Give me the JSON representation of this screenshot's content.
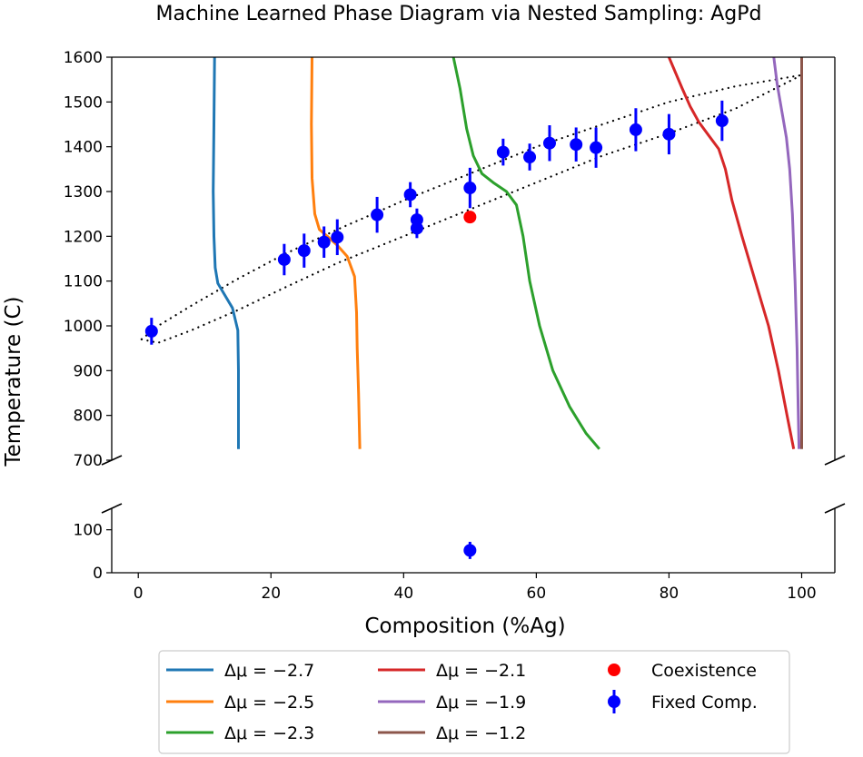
{
  "chart_data": {
    "type": "line",
    "title": "Machine Learned Phase Diagram via Nested Sampling: AgPd",
    "xlabel": "Composition (%Ag)",
    "ylabel": "Temperature (C)",
    "xlim": [
      -4,
      105
    ],
    "ylim_upper": [
      700,
      1600
    ],
    "ylim_lower": [
      0,
      150
    ],
    "xticks": [
      "0",
      "20",
      "40",
      "60",
      "80",
      "100"
    ],
    "yticks_upper": [
      "700",
      "800",
      "900",
      "1000",
      "1100",
      "1200",
      "1300",
      "1400",
      "1500",
      "1600"
    ],
    "yticks_lower": [
      "0",
      "100"
    ],
    "series": [
      {
        "name": "Δμ = −2.7",
        "label_prefix": "Δμ = ",
        "label_value": "−2.7",
        "color": "#1f77b4",
        "points": [
          [
            11.5,
            1600
          ],
          [
            11.4,
            1450
          ],
          [
            11.3,
            1300
          ],
          [
            11.4,
            1200
          ],
          [
            11.6,
            1130
          ],
          [
            12,
            1095
          ],
          [
            13,
            1070
          ],
          [
            14.2,
            1040
          ],
          [
            15,
            990
          ],
          [
            15.1,
            900
          ],
          [
            15.1,
            800
          ],
          [
            15.1,
            725
          ]
        ]
      },
      {
        "name": "Δμ = −2.5",
        "label_prefix": "Δμ = ",
        "label_value": "−2.5",
        "color": "#ff7f0e",
        "points": [
          [
            26.2,
            1600
          ],
          [
            26.1,
            1450
          ],
          [
            26.2,
            1330
          ],
          [
            26.6,
            1250
          ],
          [
            27.3,
            1215
          ],
          [
            28.5,
            1200
          ],
          [
            30,
            1180
          ],
          [
            31.5,
            1155
          ],
          [
            32.6,
            1110
          ],
          [
            32.9,
            1030
          ],
          [
            33,
            950
          ],
          [
            33.2,
            850
          ],
          [
            33.4,
            725
          ]
        ]
      },
      {
        "name": "Δμ = −2.3",
        "label_prefix": "Δμ = ",
        "label_value": "−2.3",
        "color": "#2 ca02c",
        "points": [
          [
            47.5,
            1600
          ],
          [
            48.5,
            1530
          ],
          [
            49.5,
            1440
          ],
          [
            50.5,
            1380
          ],
          [
            51.8,
            1340
          ],
          [
            53.5,
            1320
          ],
          [
            55.5,
            1300
          ],
          [
            57,
            1270
          ],
          [
            58,
            1200
          ],
          [
            59,
            1100
          ],
          [
            60.5,
            1000
          ],
          [
            62.5,
            900
          ],
          [
            65,
            820
          ],
          [
            67.5,
            760
          ],
          [
            69.5,
            725
          ]
        ]
      },
      {
        "name": "Δμ = −2.1",
        "label_prefix": "Δμ = ",
        "label_value": "−2.1",
        "color": "#d62728",
        "points": [
          [
            80,
            1600
          ],
          [
            82,
            1530
          ],
          [
            83.2,
            1490
          ],
          [
            84.5,
            1455
          ],
          [
            86,
            1425
          ],
          [
            87.5,
            1395
          ],
          [
            88.5,
            1350
          ],
          [
            89.5,
            1280
          ],
          [
            91,
            1200
          ],
          [
            93,
            1100
          ],
          [
            95,
            1000
          ],
          [
            96.5,
            900
          ],
          [
            97.8,
            800
          ],
          [
            98.8,
            725
          ]
        ]
      },
      {
        "name": "Δμ = −1.9",
        "label_prefix": "Δμ = ",
        "label_value": "−1.9",
        "color": "#9467bd",
        "points": [
          [
            95.8,
            1600
          ],
          [
            96.3,
            1540
          ],
          [
            97,
            1480
          ],
          [
            97.7,
            1420
          ],
          [
            98.2,
            1350
          ],
          [
            98.6,
            1250
          ],
          [
            99,
            1100
          ],
          [
            99.3,
            950
          ],
          [
            99.5,
            800
          ],
          [
            99.6,
            725
          ]
        ]
      },
      {
        "name": "Δμ = −1.2",
        "label_prefix": "Δμ = ",
        "label_value": "−1.2",
        "color": "#8c564b",
        "points": [
          [
            100,
            1600
          ],
          [
            100,
            1400
          ],
          [
            100,
            1200
          ],
          [
            100,
            1000
          ],
          [
            100,
            800
          ],
          [
            100,
            725
          ]
        ]
      }
    ],
    "phase_boundary": {
      "style": "dotted",
      "color": "#000000",
      "liquidus": [
        [
          0.5,
          970
        ],
        [
          3,
          1000
        ],
        [
          8,
          1045
        ],
        [
          15,
          1105
        ],
        [
          22,
          1160
        ],
        [
          30,
          1215
        ],
        [
          40,
          1280
        ],
        [
          50,
          1340
        ],
        [
          60,
          1400
        ],
        [
          70,
          1450
        ],
        [
          80,
          1500
        ],
        [
          90,
          1535
        ],
        [
          100,
          1560
        ]
      ],
      "solidus": [
        [
          0.5,
          970
        ],
        [
          3,
          962
        ],
        [
          8,
          990
        ],
        [
          15,
          1035
        ],
        [
          22,
          1085
        ],
        [
          30,
          1140
        ],
        [
          40,
          1200
        ],
        [
          50,
          1260
        ],
        [
          60,
          1320
        ],
        [
          70,
          1380
        ],
        [
          80,
          1430
        ],
        [
          90,
          1485
        ],
        [
          100,
          1560
        ]
      ]
    },
    "coexistence": {
      "label": "Coexistence",
      "color": "#ff0000",
      "points": [
        [
          50,
          1243
        ]
      ]
    },
    "fixed_comp": {
      "label": "Fixed Comp.",
      "color": "#0000ff",
      "points": [
        {
          "x": 2,
          "y": 988,
          "err": 30
        },
        {
          "x": 22,
          "y": 1148,
          "err": 35
        },
        {
          "x": 25,
          "y": 1168,
          "err": 38
        },
        {
          "x": 28,
          "y": 1187,
          "err": 35
        },
        {
          "x": 30,
          "y": 1198,
          "err": 40
        },
        {
          "x": 36,
          "y": 1248,
          "err": 40
        },
        {
          "x": 41,
          "y": 1293,
          "err": 28
        },
        {
          "x": 42,
          "y": 1237,
          "err": 25
        },
        {
          "x": 42,
          "y": 1218,
          "err": 22
        },
        {
          "x": 50,
          "y": 1308,
          "err": 45
        },
        {
          "x": 55,
          "y": 1388,
          "err": 30
        },
        {
          "x": 59,
          "y": 1377,
          "err": 30
        },
        {
          "x": 62,
          "y": 1408,
          "err": 40
        },
        {
          "x": 66,
          "y": 1405,
          "err": 38
        },
        {
          "x": 69,
          "y": 1398,
          "err": 45
        },
        {
          "x": 75,
          "y": 1438,
          "err": 48
        },
        {
          "x": 80,
          "y": 1428,
          "err": 45
        },
        {
          "x": 88,
          "y": 1458,
          "err": 45
        },
        {
          "x": 50,
          "y": 52,
          "err": 20,
          "panel": "lower"
        }
      ]
    },
    "legend_position": "below"
  }
}
